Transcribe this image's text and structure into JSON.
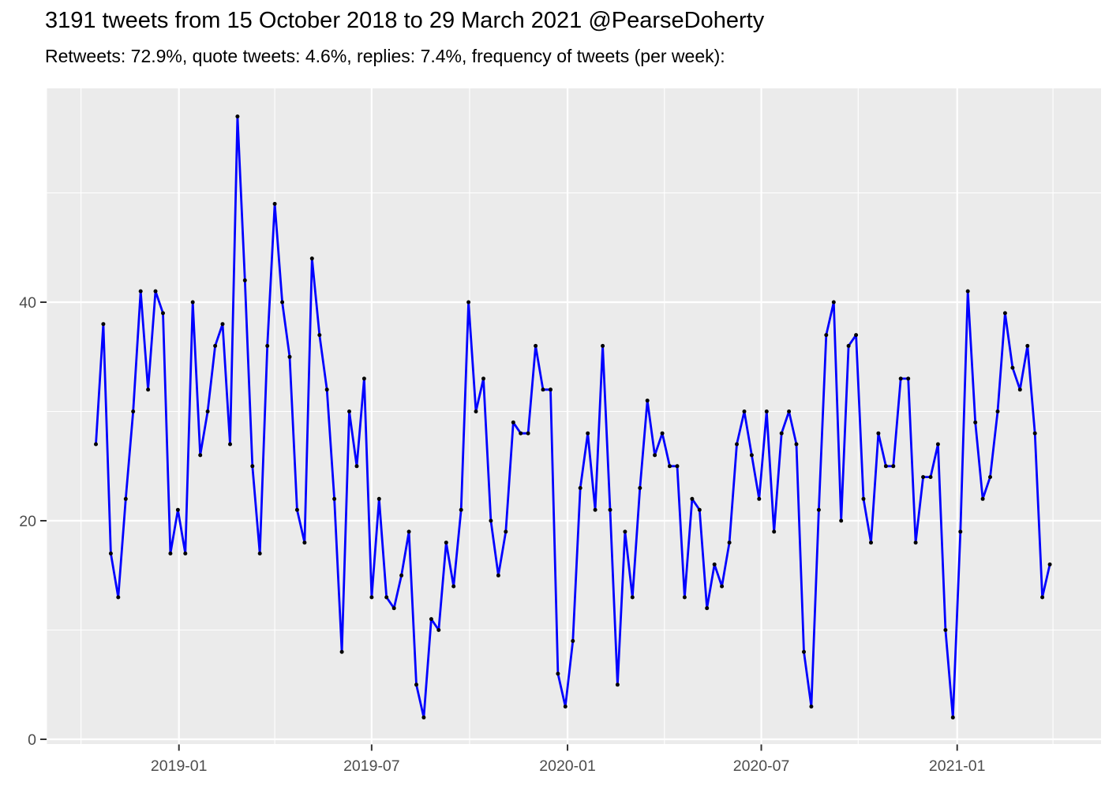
{
  "header": {
    "title": "3191 tweets from 15 October 2018 to 29 March 2021 @PearseDoherty",
    "subtitle": "Retweets: 72.9%, quote tweets: 4.6%, replies: 7.4%, frequency of tweets (per week):"
  },
  "chart_data": {
    "type": "line",
    "title": "3191 tweets from 15 October 2018 to 29 March 2021 @PearseDoherty",
    "subtitle": "Retweets: 72.9%, quote tweets: 4.6%, replies: 7.4%, frequency of tweets (per week):",
    "series_name": "tweets per week",
    "start_date": "2018-10-15",
    "end_date": "2021-03-29",
    "interval": "weekly",
    "n_points": 129,
    "values": [
      27,
      38,
      17,
      13,
      22,
      30,
      41,
      32,
      41,
      39,
      17,
      21,
      17,
      40,
      26,
      30,
      36,
      38,
      27,
      57,
      42,
      25,
      17,
      36,
      49,
      40,
      35,
      21,
      18,
      44,
      37,
      32,
      22,
      8,
      30,
      25,
      33,
      13,
      22,
      13,
      12,
      15,
      19,
      5,
      2,
      11,
      10,
      18,
      14,
      21,
      40,
      30,
      33,
      20,
      15,
      19,
      29,
      28,
      28,
      36,
      32,
      32,
      6,
      3,
      9,
      23,
      28,
      21,
      36,
      21,
      5,
      19,
      13,
      23,
      31,
      26,
      28,
      25,
      25,
      13,
      22,
      21,
      12,
      16,
      14,
      18,
      27,
      30,
      26,
      22,
      30,
      19,
      28,
      30,
      27,
      8,
      3,
      21,
      37,
      40,
      20,
      36,
      37,
      22,
      18,
      28,
      25,
      25,
      33,
      33,
      18,
      24,
      24,
      27,
      10,
      2,
      19,
      41,
      29,
      22,
      24,
      30,
      39,
      34,
      32,
      36,
      28,
      13,
      16
    ],
    "x_axis": {
      "tick_labels": [
        "2019-01",
        "2019-07",
        "2020-01",
        "2020-07",
        "2021-01"
      ],
      "tick_week_positions": [
        11.143,
        37.0,
        63.286,
        89.286,
        115.571
      ],
      "minor_week_positions": [
        -2.0,
        24.0,
        50.143,
        76.286,
        102.286,
        128.429
      ]
    },
    "y_axis": {
      "tick_labels": [
        "0",
        "20",
        "40"
      ],
      "ticks": [
        0,
        20,
        40
      ],
      "minor": [
        10,
        30,
        50
      ],
      "ylim": [
        -0.45,
        59.6
      ]
    },
    "legend": "none",
    "grid": true,
    "style": {
      "line_color": "#0000FF",
      "point_color": "#000000",
      "panel_bg": "#EBEBEB",
      "grid_color": "#FFFFFF",
      "axis_text_color": "#4D4D4D",
      "tick_mark_color": "#333333",
      "title_color": "#000000",
      "page_bg": "#FFFFFF"
    }
  }
}
